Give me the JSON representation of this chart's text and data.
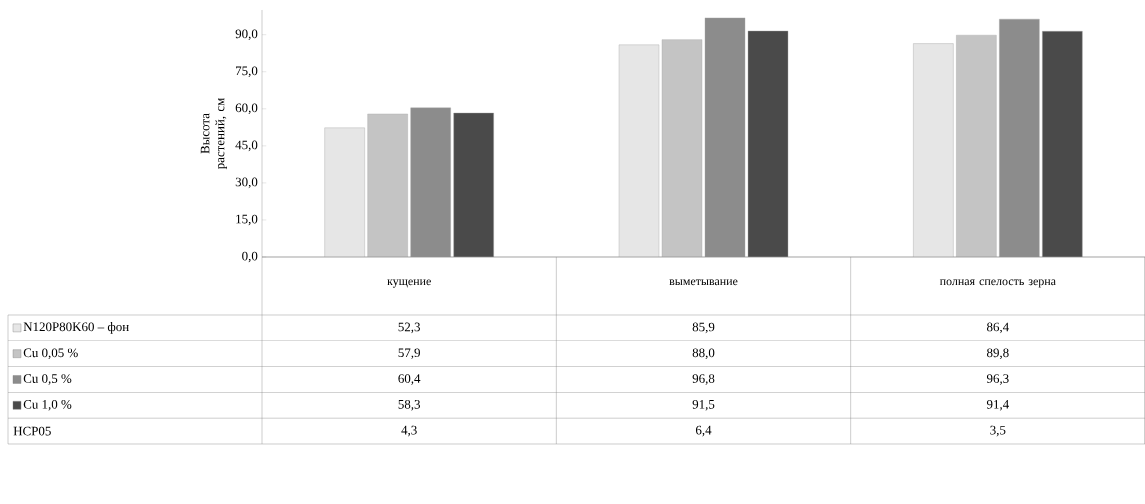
{
  "chart_data": {
    "type": "bar",
    "ylabel": "Высота растений, см",
    "categories": [
      "кущение",
      "выметывание",
      "полная спелость зерна"
    ],
    "series": [
      {
        "name": "N120P80K60 – фон",
        "color": "#e6e6e6",
        "values": [
          52.3,
          85.9,
          86.4
        ],
        "value_labels": [
          "52,3",
          "85,9",
          "86,4"
        ]
      },
      {
        "name": "Cu 0,05 %",
        "color": "#c4c4c4",
        "values": [
          57.9,
          88.0,
          89.8
        ],
        "value_labels": [
          "57,9",
          "88,0",
          "89,8"
        ]
      },
      {
        "name": "Cu 0,5 %",
        "color": "#8c8c8c",
        "values": [
          60.4,
          96.8,
          96.3
        ],
        "value_labels": [
          "60,4",
          "96,8",
          "96,3"
        ]
      },
      {
        "name": "Cu 1,0 %",
        "color": "#4a4a4a",
        "values": [
          58.3,
          91.5,
          91.4
        ],
        "value_labels": [
          "58,3",
          "91,5",
          "91,4"
        ]
      }
    ],
    "ylim": [
      0,
      100
    ],
    "yticks": [
      {
        "value": 0,
        "label": "0,0"
      },
      {
        "value": 15,
        "label": "15,0"
      },
      {
        "value": 30,
        "label": "30,0"
      },
      {
        "value": 45,
        "label": "45,0"
      },
      {
        "value": 60,
        "label": "60,0"
      },
      {
        "value": 75,
        "label": "75,0"
      },
      {
        "value": 90,
        "label": "90,0"
      }
    ],
    "legend": "bottom",
    "annotations": [
      "НСР05",
      "4,3",
      "6,4",
      "3,5"
    ]
  }
}
